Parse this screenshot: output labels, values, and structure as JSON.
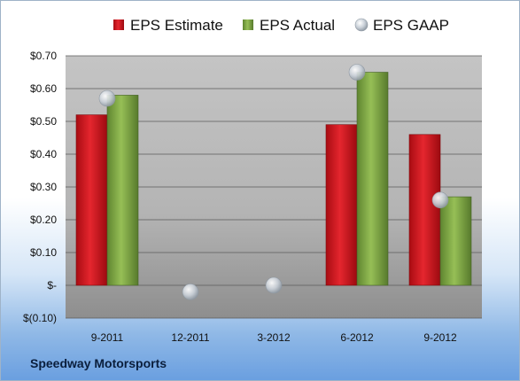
{
  "chart_data": {
    "type": "bar",
    "categories": [
      "9-2011",
      "12-2011",
      "3-2012",
      "6-2012",
      "9-2012"
    ],
    "series": [
      {
        "name": "EPS Estimate",
        "values": [
          0.52,
          null,
          null,
          0.49,
          0.46
        ],
        "color": "#c8141c"
      },
      {
        "name": "EPS Actual",
        "values": [
          0.58,
          null,
          null,
          0.65,
          0.27
        ],
        "color": "#7aa040"
      }
    ],
    "markers": {
      "name": "EPS GAAP",
      "values": [
        0.57,
        -0.02,
        0.0,
        0.65,
        0.26
      ],
      "color": "#b9c2cc"
    },
    "ylim": [
      -0.1,
      0.7
    ],
    "yticks": [
      -0.1,
      0.0,
      0.1,
      0.2,
      0.3,
      0.4,
      0.5,
      0.6,
      0.7
    ],
    "ytick_labels": [
      "$(0.10)",
      "$-",
      "$0.10",
      "$0.20",
      "$0.30",
      "$0.40",
      "$0.50",
      "$0.60",
      "$0.70"
    ],
    "grid": true,
    "legend_position": "top"
  },
  "company_name": "Speedway Motorsports"
}
